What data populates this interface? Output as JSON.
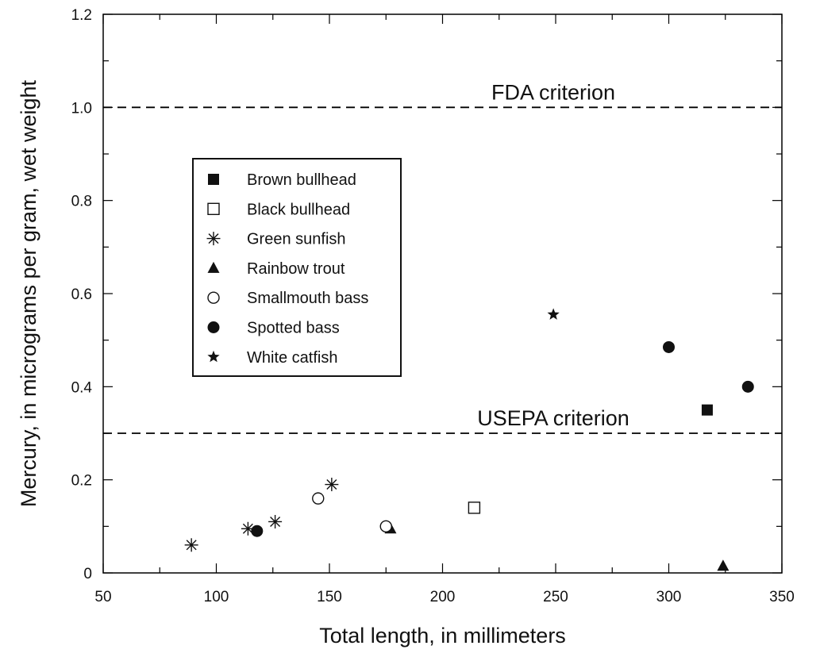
{
  "chart_data": {
    "type": "scatter",
    "title": "",
    "xlabel": "Total length, in millimeters",
    "ylabel": "Mercury, in micrograms per gram, wet weight",
    "xlim": [
      50,
      350
    ],
    "ylim": [
      0,
      1.2
    ],
    "x_ticks": [
      50,
      100,
      150,
      200,
      250,
      300,
      350
    ],
    "y_ticks": [
      0,
      0.2,
      0.4,
      0.6,
      0.8,
      1.0,
      1.2
    ],
    "y_tick_labels": [
      "0",
      "0.2",
      "0.4",
      "0.6",
      "0.8",
      "1.0",
      "1.2"
    ],
    "grid": false,
    "legend_position": "center-left",
    "reference_lines": [
      {
        "name": "FDA criterion",
        "y": 1.0
      },
      {
        "name": "USEPA criterion",
        "y": 0.3
      }
    ],
    "series": [
      {
        "name": "Brown bullhead",
        "marker": "square-filled",
        "points": [
          [
            317,
            0.35
          ]
        ]
      },
      {
        "name": "Black bullhead",
        "marker": "square-open",
        "points": [
          [
            214,
            0.14
          ]
        ]
      },
      {
        "name": "Green sunfish",
        "marker": "asterisk",
        "points": [
          [
            89,
            0.06
          ],
          [
            114,
            0.095
          ],
          [
            126,
            0.11
          ],
          [
            151,
            0.19
          ]
        ]
      },
      {
        "name": "Rainbow trout",
        "marker": "triangle-filled",
        "points": [
          [
            177,
            0.095
          ],
          [
            324,
            0.015
          ]
        ]
      },
      {
        "name": "Smallmouth bass",
        "marker": "circle-open",
        "points": [
          [
            145,
            0.16
          ],
          [
            175,
            0.1
          ]
        ]
      },
      {
        "name": "Spotted bass",
        "marker": "circle-filled",
        "points": [
          [
            118,
            0.09
          ],
          [
            300,
            0.485
          ],
          [
            335,
            0.4
          ]
        ]
      },
      {
        "name": "White catfish",
        "marker": "star-filled",
        "points": [
          [
            249,
            0.555
          ]
        ]
      }
    ]
  }
}
